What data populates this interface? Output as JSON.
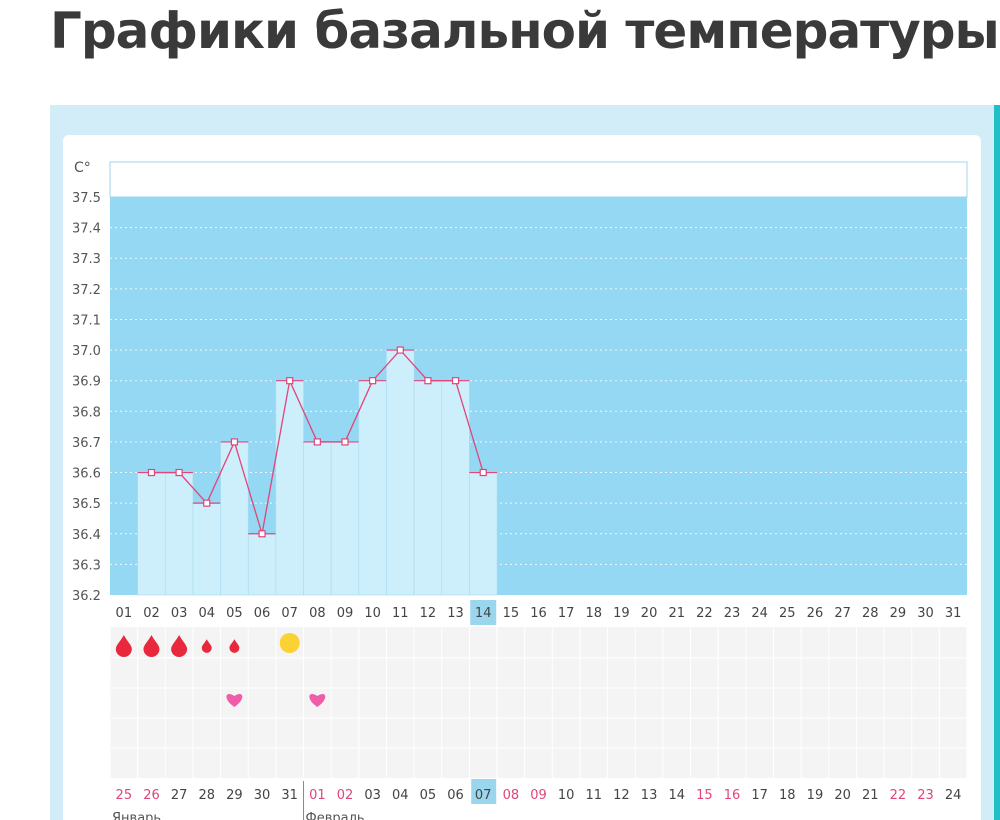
{
  "page": {
    "title": "Графики базальной температуры"
  },
  "chart_data": {
    "type": "bar",
    "ylabel": "C°",
    "ylim": [
      36.2,
      37.5
    ],
    "y_ticks": [
      "37.5",
      "37.4",
      "37.3",
      "37.2",
      "37.1",
      "37.0",
      "36.9",
      "36.8",
      "36.7",
      "36.6",
      "36.5",
      "36.4",
      "36.3",
      "36.2"
    ],
    "cycle_days": [
      "01",
      "02",
      "03",
      "04",
      "05",
      "06",
      "07",
      "08",
      "09",
      "10",
      "11",
      "12",
      "13",
      "14",
      "15",
      "16",
      "17",
      "18",
      "19",
      "20",
      "21",
      "22",
      "23",
      "24",
      "25",
      "26",
      "27",
      "28",
      "29",
      "30",
      "31"
    ],
    "current_day": "14",
    "temperatures": [
      null,
      36.6,
      36.6,
      36.5,
      36.7,
      36.4,
      36.9,
      36.7,
      36.7,
      36.9,
      37.0,
      36.9,
      36.9,
      36.6,
      null,
      null,
      null,
      null,
      null,
      null,
      null,
      null,
      null,
      null,
      null,
      null,
      null,
      null,
      null,
      null,
      null
    ],
    "bleeding": [
      {
        "day": "01",
        "level": "heavy"
      },
      {
        "day": "02",
        "level": "heavy"
      },
      {
        "day": "03",
        "level": "heavy"
      },
      {
        "day": "04",
        "level": "light"
      },
      {
        "day": "05",
        "level": "light"
      }
    ],
    "ovulation_day": "07",
    "intercourse_days": [
      "05",
      "08"
    ],
    "calendar_dates": [
      "25",
      "26",
      "27",
      "28",
      "29",
      "30",
      "31",
      "01",
      "02",
      "03",
      "04",
      "05",
      "06",
      "07",
      "08",
      "09",
      "10",
      "11",
      "12",
      "13",
      "14",
      "15",
      "16",
      "17",
      "18",
      "19",
      "20",
      "21",
      "22",
      "23",
      "24"
    ],
    "weekend_dates": [
      0,
      1,
      7,
      8,
      14,
      15,
      21,
      22,
      28,
      29
    ],
    "current_date_index": 13,
    "months": [
      {
        "label": "Январь",
        "start_index": 0
      },
      {
        "label": "Февраль",
        "start_index": 7
      }
    ],
    "colors": {
      "plot_bg": "#94d8f3",
      "bar_fill": "#cdeefb",
      "line": "#e0457b",
      "marker": "#e0457b",
      "blood": "#e8283c",
      "ovulation": "#fad233",
      "heart": "#ef5ca8",
      "weekend_date": "#e0457b",
      "current_badge": "#9ad7ef"
    }
  }
}
